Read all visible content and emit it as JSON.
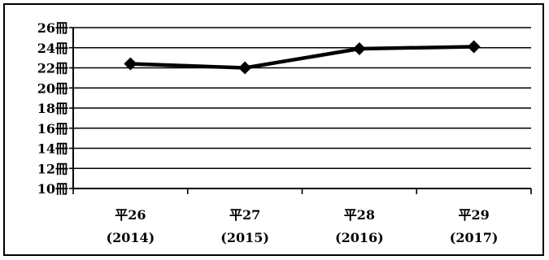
{
  "chart_data": {
    "type": "line",
    "title": "",
    "xlabel": "",
    "ylabel": "",
    "categories": [
      {
        "era": "平26",
        "year": "(2014)"
      },
      {
        "era": "平27",
        "year": "(2015)"
      },
      {
        "era": "平28",
        "year": "(2016)"
      },
      {
        "era": "平29",
        "year": "(2017)"
      }
    ],
    "series": [
      {
        "values": [
          22.4,
          22.0,
          23.9,
          24.1
        ],
        "color": "#000000",
        "marker": "diamond"
      }
    ],
    "ylim": [
      10,
      26
    ],
    "ystep": 2,
    "y_tick_unit": "冊",
    "y_tick_labels": [
      "10冊",
      "12冊",
      "14冊",
      "16冊",
      "18冊",
      "20冊",
      "22冊",
      "24冊",
      "26冊"
    ],
    "grid": true,
    "legend": "none"
  }
}
